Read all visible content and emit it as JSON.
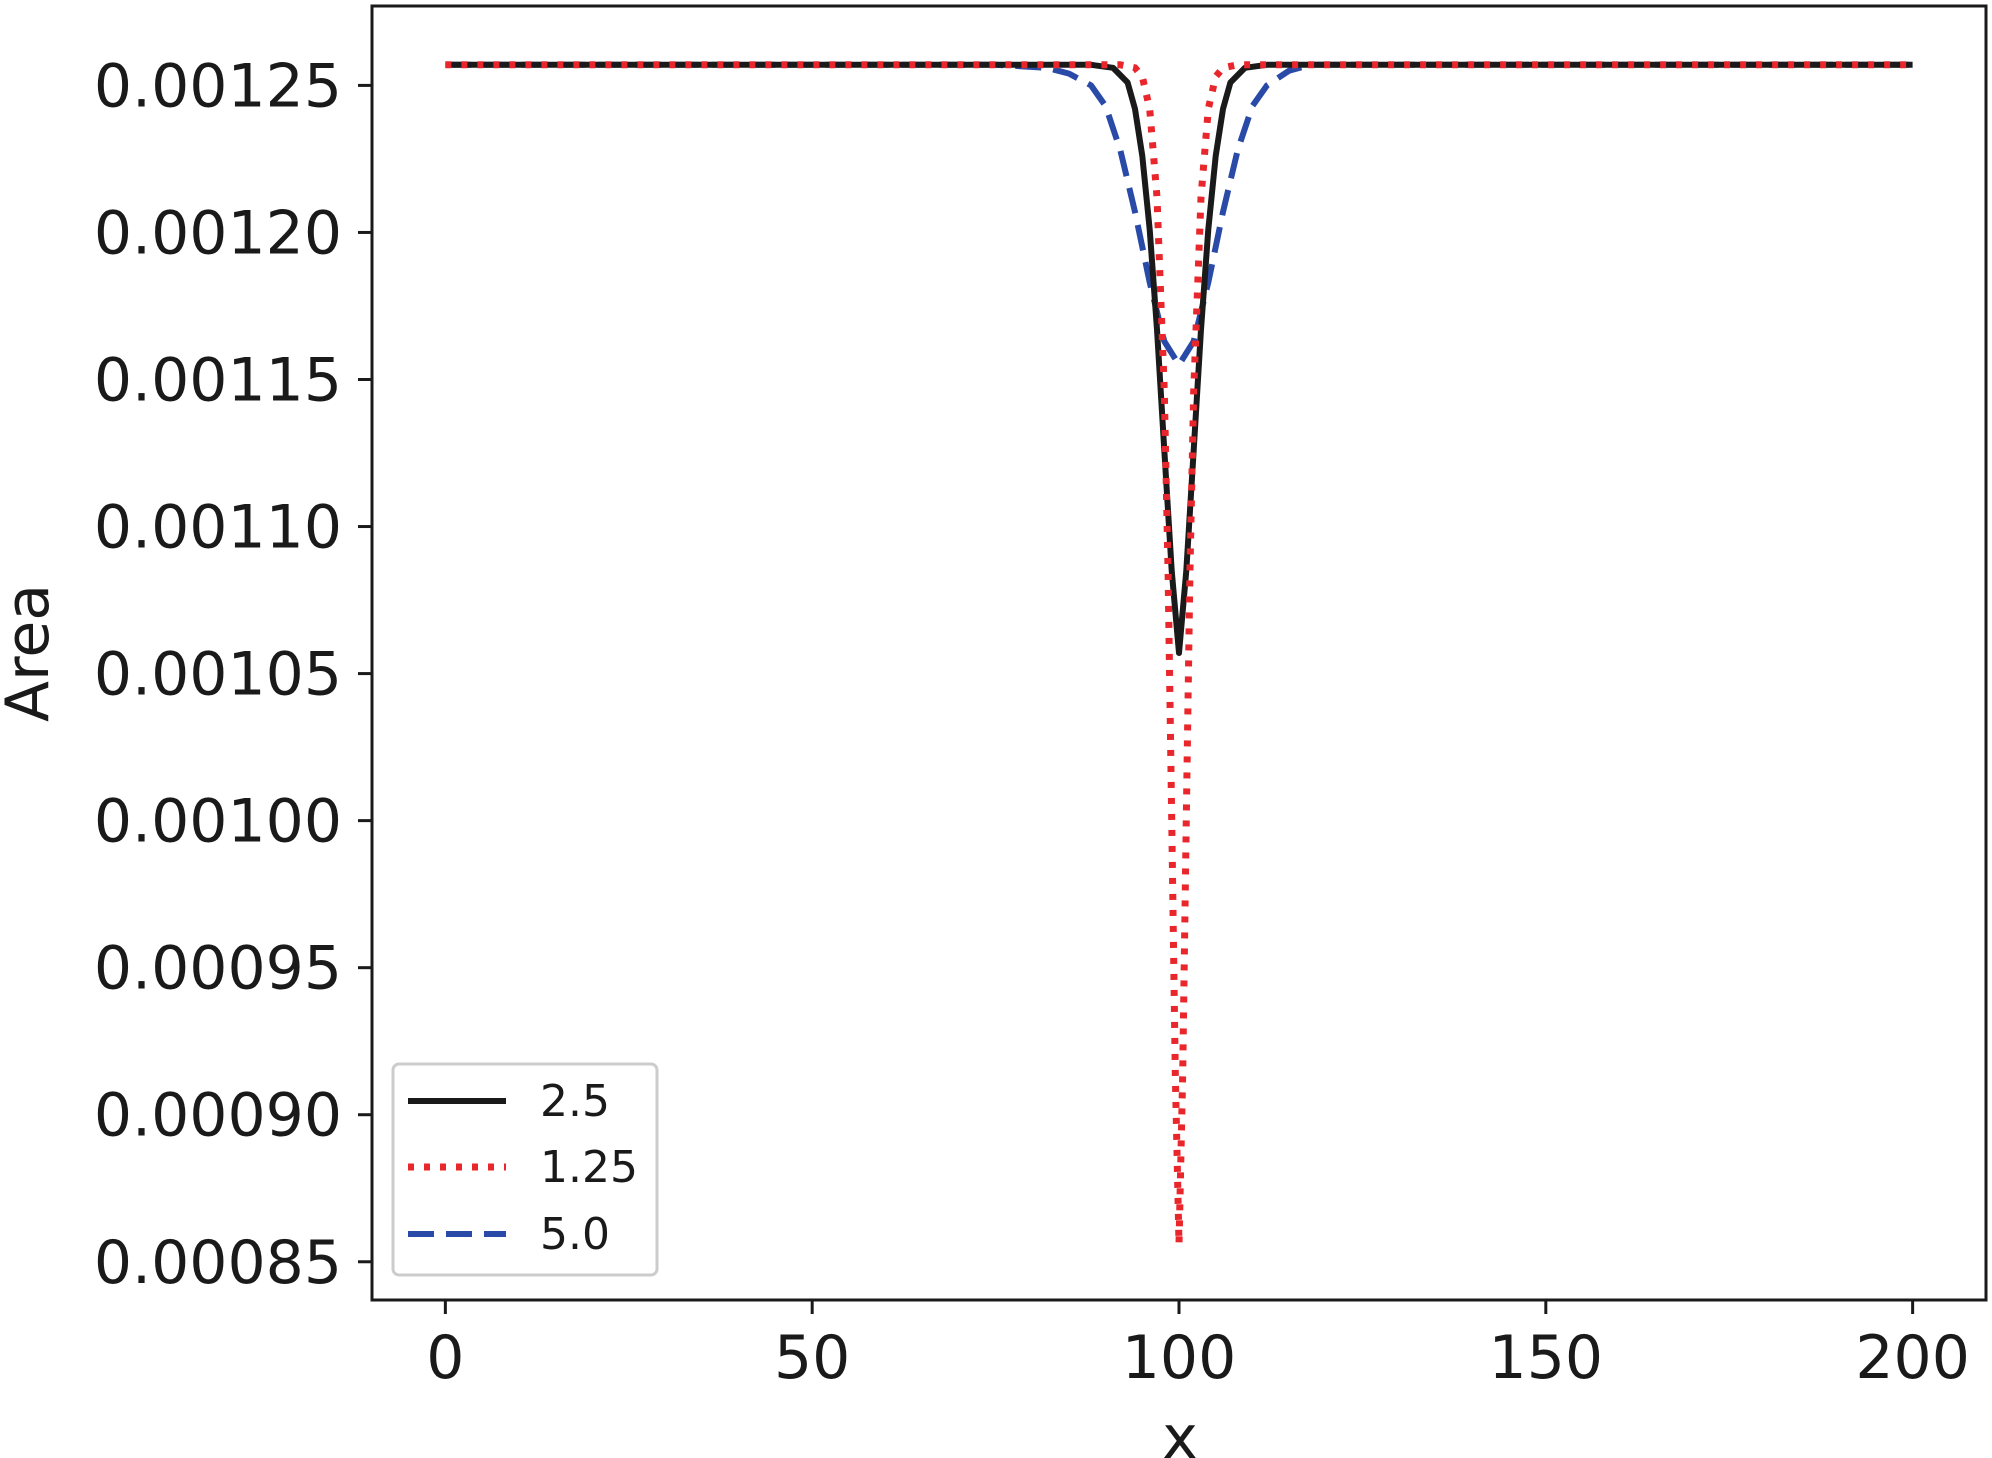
{
  "chart_data": {
    "type": "line",
    "title": "",
    "xlabel": "x",
    "ylabel": "Area",
    "xlim": [
      -10,
      210
    ],
    "ylim": [
      0.000837,
      0.001277
    ],
    "xticks": [
      0,
      50,
      100,
      150,
      200
    ],
    "xtick_labels": [
      "0",
      "50",
      "100",
      "150",
      "200"
    ],
    "yticks": [
      0.00085,
      0.0009,
      0.00095,
      0.001,
      0.00105,
      0.0011,
      0.00115,
      0.0012,
      0.00125
    ],
    "ytick_labels": [
      "0.00085",
      "0.00090",
      "0.00095",
      "0.00100",
      "0.00105",
      "0.00110",
      "0.00115",
      "0.00120",
      "0.00125"
    ],
    "grid": false,
    "legend": {
      "position": "lower-left",
      "entries": [
        "2.5",
        "1.25",
        "5.0"
      ]
    },
    "series": [
      {
        "name": "2.5",
        "style": "solid",
        "color": "#1a1a1a",
        "x": [
          0,
          20,
          40,
          60,
          80,
          88,
          91,
          93,
          94,
          95,
          96,
          97,
          98,
          99,
          100,
          101,
          102,
          103,
          104,
          105,
          106,
          107,
          109,
          112,
          120,
          140,
          160,
          180,
          200
        ],
        "y": [
          0.001257,
          0.001257,
          0.001257,
          0.001257,
          0.001257,
          0.001257,
          0.001256,
          0.001251,
          0.001242,
          0.001226,
          0.001201,
          0.001167,
          0.001126,
          0.001085,
          0.001057,
          0.001085,
          0.001126,
          0.001167,
          0.001201,
          0.001226,
          0.001242,
          0.001251,
          0.001256,
          0.001257,
          0.001257,
          0.001257,
          0.001257,
          0.001257,
          0.001257
        ]
      },
      {
        "name": "1.25",
        "style": "dotted",
        "color": "#e8262b",
        "x": [
          0,
          20,
          40,
          60,
          80,
          92,
          94,
          95,
          96,
          97,
          98,
          98.5,
          99,
          99.5,
          100,
          100.5,
          101,
          101.5,
          102,
          103,
          104,
          105,
          106,
          108,
          120,
          140,
          160,
          180,
          200
        ],
        "y": [
          0.001257,
          0.001257,
          0.001257,
          0.001257,
          0.001257,
          0.001257,
          0.001256,
          0.001253,
          0.001242,
          0.001212,
          0.001146,
          0.001086,
          0.001001,
          0.000914,
          0.000856,
          0.000914,
          0.001001,
          0.001086,
          0.001146,
          0.001212,
          0.001242,
          0.001253,
          0.001256,
          0.001257,
          0.001257,
          0.001257,
          0.001257,
          0.001257,
          0.001257
        ]
      },
      {
        "name": "5.0",
        "style": "dashed",
        "color": "#2a4aa8",
        "x": [
          0,
          20,
          40,
          60,
          75,
          82,
          85,
          88,
          90,
          92,
          94,
          96,
          98,
          100,
          102,
          104,
          106,
          108,
          110,
          112,
          115,
          118,
          125,
          140,
          160,
          180,
          200
        ],
        "y": [
          0.001257,
          0.001257,
          0.001257,
          0.001257,
          0.001257,
          0.001256,
          0.001254,
          0.00125,
          0.001243,
          0.001228,
          0.001207,
          0.001183,
          0.001163,
          0.001155,
          0.001163,
          0.001183,
          0.001207,
          0.001228,
          0.001243,
          0.00125,
          0.001255,
          0.001257,
          0.001257,
          0.001257,
          0.001257,
          0.001257,
          0.001257
        ]
      }
    ]
  }
}
